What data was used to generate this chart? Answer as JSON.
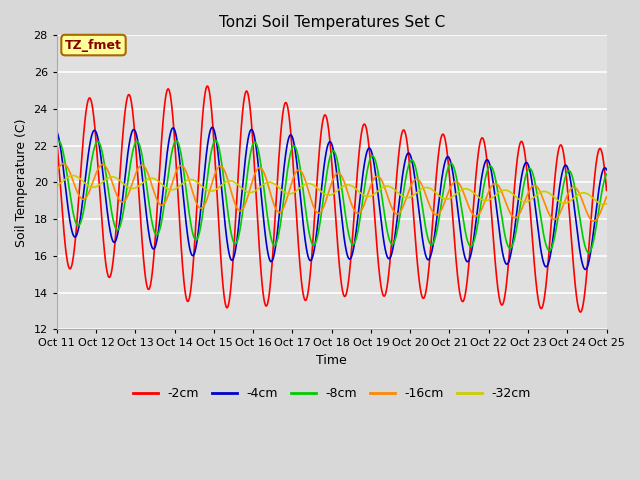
{
  "title": "Tonzi Soil Temperatures Set C",
  "xlabel": "Time",
  "ylabel": "Soil Temperature (C)",
  "ylim": [
    12,
    28
  ],
  "xlim": [
    0,
    336
  ],
  "x_tick_labels": [
    "Oct 11",
    "Oct 12",
    "Oct 13",
    "Oct 14",
    "Oct 15",
    "Oct 16",
    "Oct 17",
    "Oct 18",
    "Oct 19",
    "Oct 20",
    "Oct 21",
    "Oct 22",
    "Oct 23",
    "Oct 24",
    "Oct 25"
  ],
  "x_tick_positions": [
    0,
    24,
    48,
    72,
    96,
    120,
    144,
    168,
    192,
    216,
    240,
    264,
    288,
    312,
    336
  ],
  "y_ticks": [
    12,
    14,
    16,
    18,
    20,
    22,
    24,
    26,
    28
  ],
  "colors": {
    "-2cm": "#ff0000",
    "-4cm": "#0000cc",
    "-8cm": "#00cc00",
    "-16cm": "#ff8800",
    "-32cm": "#cccc00"
  },
  "annotation_text": "TZ_fmet",
  "annotation_bg": "#ffff99",
  "annotation_border": "#aa6600",
  "annotation_text_color": "#880000",
  "background_color": "#e8e8e8",
  "plot_bg_color": "#e0e0e0",
  "grid_color": "#ffffff",
  "linewidth": 1.2,
  "figsize": [
    6.4,
    4.8
  ],
  "dpi": 100
}
